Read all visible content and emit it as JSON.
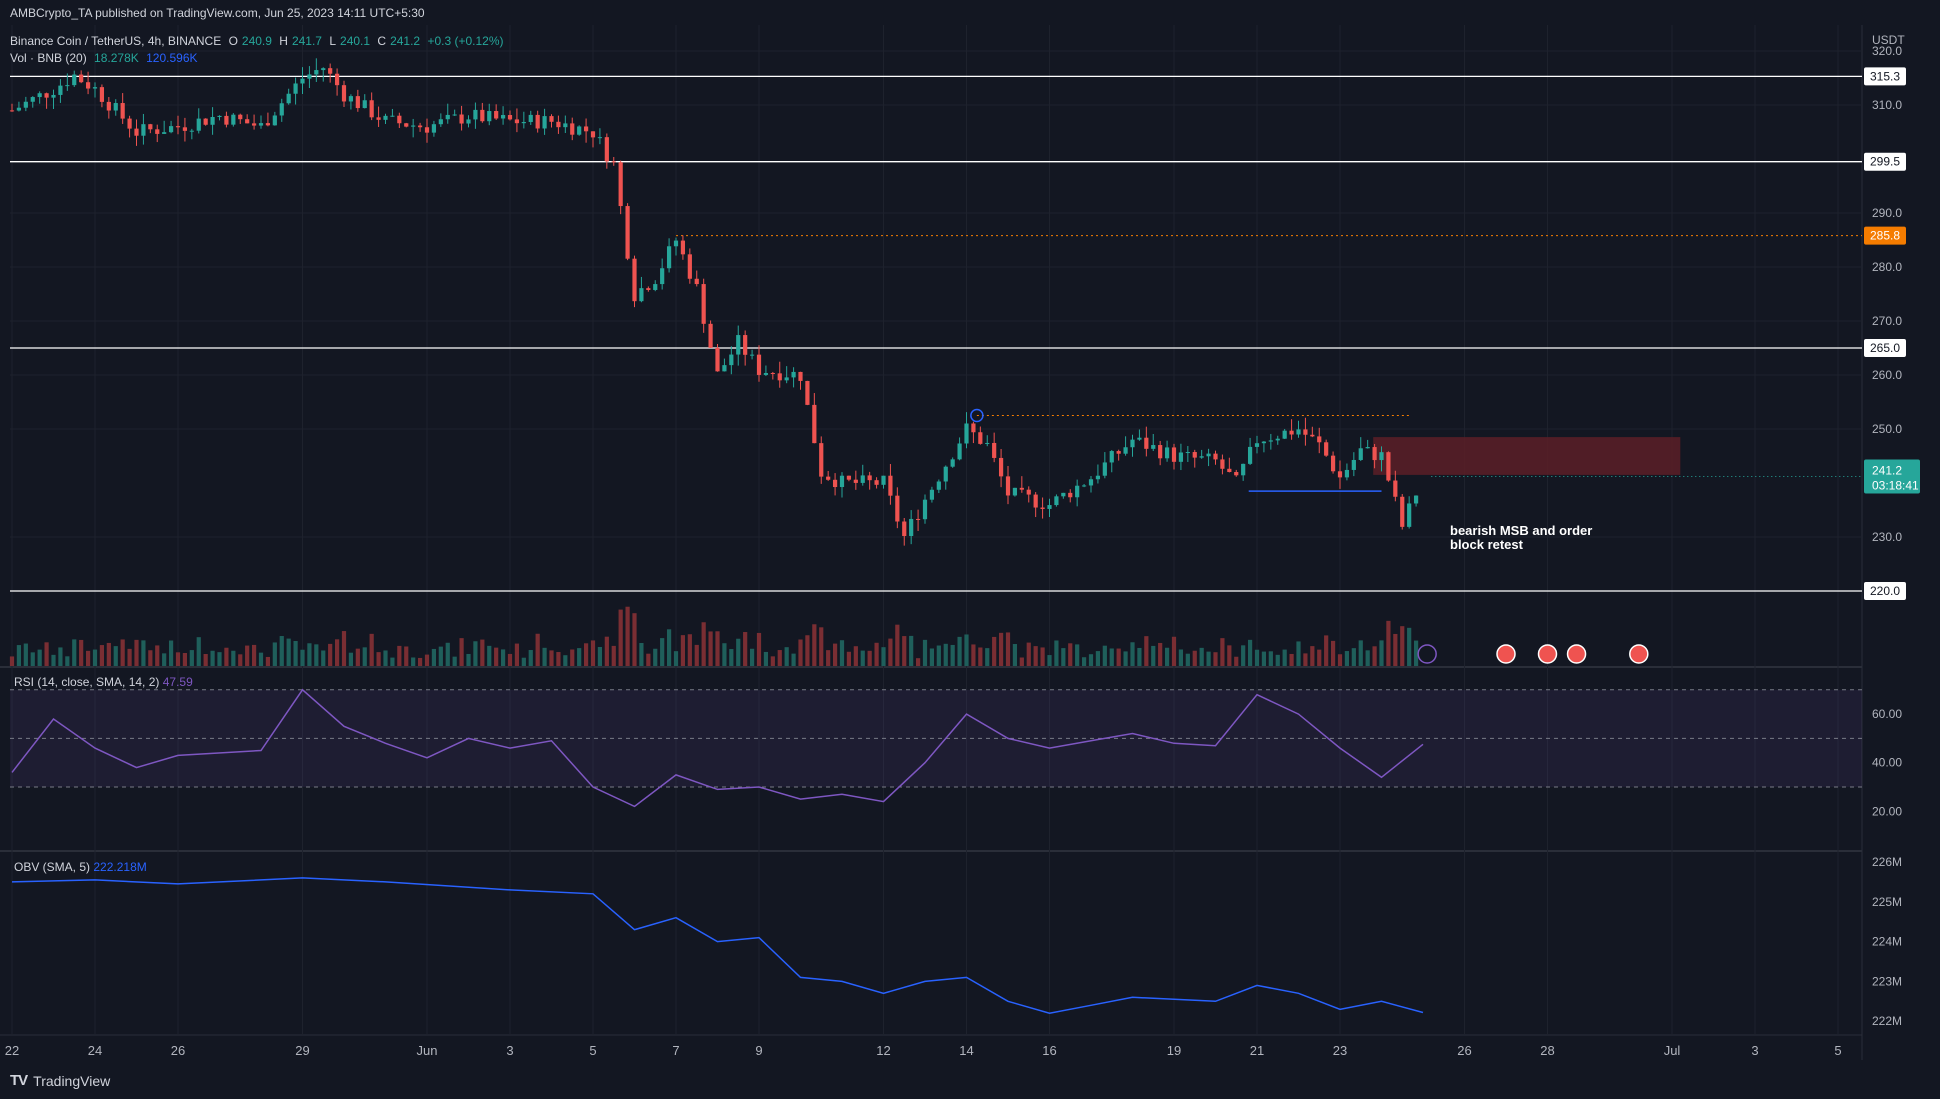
{
  "header": {
    "publisher": "AMBCrypto_TA published on TradingView.com, Jun 25, 2023 14:11 UTC+5:30",
    "symbol": "Binance Coin / TetherUS, 4h, BINANCE",
    "ohlc": {
      "o_label": "O",
      "o": "240.9",
      "h_label": "H",
      "h": "241.7",
      "l_label": "L",
      "l": "240.1",
      "c_label": "C",
      "c": "241.2",
      "change": "+0.3 (+0.12%)"
    },
    "volume": {
      "label": "Vol · BNB (20)",
      "value1": "18.278K",
      "value2": "120.596K"
    }
  },
  "price_axis": {
    "currency": "USDT",
    "ticks": [
      "320.0",
      "310.0",
      "290.0",
      "280.0",
      "270.0",
      "260.0",
      "250.0",
      "230.0"
    ],
    "level_labels": [
      "315.3",
      "299.5",
      "285.8",
      "265.0",
      "220.0"
    ],
    "current_price": "241.2",
    "countdown": "03:18:41"
  },
  "rsi": {
    "label": "RSI (14, close, SMA, 14, 2)",
    "value": "47.59",
    "ticks": [
      "60.00",
      "40.00",
      "20.00"
    ]
  },
  "obv": {
    "label": "OBV (SMA, 5)",
    "value": "222.218M",
    "ticks": [
      "226M",
      "225M",
      "224M",
      "223M",
      "222M"
    ]
  },
  "time_axis": [
    "22",
    "24",
    "26",
    "29",
    "Jun",
    "3",
    "5",
    "7",
    "9",
    "12",
    "14",
    "16",
    "19",
    "21",
    "23",
    "26",
    "28",
    "Jul",
    "3",
    "5"
  ],
  "annotation": "bearish MSB and order block retest",
  "footer": {
    "logo": "TV",
    "brand": "TradingView"
  },
  "colors": {
    "bg": "#131722",
    "up": "#26a69a",
    "down": "#ef5350",
    "orange": "#f57c00",
    "blue": "#2962ff",
    "rsi": "#7e57c2",
    "order_block": "#5c1f27"
  },
  "chart_data": {
    "type": "candlestick",
    "title": "Binance Coin / TetherUS, 4h, BINANCE",
    "ylim": [
      217,
      322
    ],
    "horizontal_levels": [
      315.3,
      299.5,
      285.8,
      265.0,
      220.0
    ],
    "resistance_dotted": [
      285.8,
      252.5
    ],
    "order_block": {
      "from": "Jun 23",
      "to": "Jul 1",
      "low": 241.5,
      "high": 248.5
    },
    "support_line": {
      "price": 238.5,
      "from": "Jun 20",
      "to": "Jun 24"
    },
    "close_series": [
      [
        "May 22",
        309
      ],
      [
        "May 23",
        313
      ],
      [
        "May 23",
        315.5
      ],
      [
        "May 24",
        313
      ],
      [
        "May 25",
        305
      ],
      [
        "May 26",
        306
      ],
      [
        "May 27",
        308
      ],
      [
        "May 28",
        306
      ],
      [
        "May 29",
        315
      ],
      [
        "May 29",
        317
      ],
      [
        "May 30",
        312
      ],
      [
        "May 31",
        307
      ],
      [
        "Jun 1",
        306
      ],
      [
        "Jun 2",
        308
      ],
      [
        "Jun 3",
        307
      ],
      [
        "Jun 4",
        307
      ],
      [
        "Jun 5",
        305
      ],
      [
        "Jun 5",
        299
      ],
      [
        "Jun 6",
        275
      ],
      [
        "Jun 6",
        278
      ],
      [
        "Jun 7",
        285
      ],
      [
        "Jun 7",
        276
      ],
      [
        "Jun 8",
        260
      ],
      [
        "Jun 8",
        266
      ],
      [
        "Jun 9",
        261
      ],
      [
        "Jun 10",
        260
      ],
      [
        "Jun 10",
        242
      ],
      [
        "Jun 11",
        240
      ],
      [
        "Jun 12",
        240
      ],
      [
        "Jun 12",
        230
      ],
      [
        "Jun 13",
        237
      ],
      [
        "Jun 14",
        250
      ],
      [
        "Jun 14",
        247
      ],
      [
        "Jun 15",
        238
      ],
      [
        "Jun 16",
        236
      ],
      [
        "Jun 17",
        241
      ],
      [
        "Jun 18",
        248
      ],
      [
        "Jun 19",
        245
      ],
      [
        "Jun 20",
        244
      ],
      [
        "Jun 20",
        240
      ],
      [
        "Jun 21",
        248
      ],
      [
        "Jun 22",
        250
      ],
      [
        "Jun 22",
        247
      ],
      [
        "Jun 23",
        241
      ],
      [
        "Jun 23",
        246
      ],
      [
        "Jun 24",
        245
      ],
      [
        "Jun 24",
        232
      ],
      [
        "Jun 25",
        241.2
      ]
    ],
    "rsi_series": [
      [
        "May 22",
        36
      ],
      [
        "May 23",
        58
      ],
      [
        "May 24",
        46
      ],
      [
        "May 25",
        38
      ],
      [
        "May 26",
        43
      ],
      [
        "May 28",
        45
      ],
      [
        "May 29",
        70
      ],
      [
        "May 30",
        55
      ],
      [
        "May 31",
        48
      ],
      [
        "Jun 1",
        42
      ],
      [
        "Jun 2",
        50
      ],
      [
        "Jun 3",
        46
      ],
      [
        "Jun 4",
        49
      ],
      [
        "Jun 5",
        30
      ],
      [
        "Jun 6",
        22
      ],
      [
        "Jun 7",
        35
      ],
      [
        "Jun 8",
        29
      ],
      [
        "Jun 9",
        30
      ],
      [
        "Jun 10",
        25
      ],
      [
        "Jun 11",
        27
      ],
      [
        "Jun 12",
        24
      ],
      [
        "Jun 13",
        40
      ],
      [
        "Jun 14",
        60
      ],
      [
        "Jun 15",
        50
      ],
      [
        "Jun 16",
        46
      ],
      [
        "Jun 17",
        49
      ],
      [
        "Jun 18",
        52
      ],
      [
        "Jun 19",
        48
      ],
      [
        "Jun 20",
        47
      ],
      [
        "Jun 21",
        68
      ],
      [
        "Jun 22",
        60
      ],
      [
        "Jun 23",
        46
      ],
      [
        "Jun 24",
        34
      ],
      [
        "Jun 25",
        47.59
      ]
    ],
    "obv_series": [
      [
        "May 22",
        225.5
      ],
      [
        "May 24",
        225.55
      ],
      [
        "May 26",
        225.45
      ],
      [
        "May 29",
        225.6
      ],
      [
        "May 31",
        225.5
      ],
      [
        "Jun 3",
        225.3
      ],
      [
        "Jun 5",
        225.2
      ],
      [
        "Jun 6",
        224.3
      ],
      [
        "Jun 7",
        224.6
      ],
      [
        "Jun 8",
        224.0
      ],
      [
        "Jun 9",
        224.1
      ],
      [
        "Jun 10",
        223.1
      ],
      [
        "Jun 11",
        223.0
      ],
      [
        "Jun 12",
        222.7
      ],
      [
        "Jun 13",
        223.0
      ],
      [
        "Jun 14",
        223.1
      ],
      [
        "Jun 15",
        222.5
      ],
      [
        "Jun 16",
        222.2
      ],
      [
        "Jun 17",
        222.4
      ],
      [
        "Jun 18",
        222.6
      ],
      [
        "Jun 20",
        222.5
      ],
      [
        "Jun 21",
        222.9
      ],
      [
        "Jun 22",
        222.7
      ],
      [
        "Jun 23",
        222.3
      ],
      [
        "Jun 24",
        222.5
      ],
      [
        "Jun 25",
        222.218
      ]
    ]
  }
}
